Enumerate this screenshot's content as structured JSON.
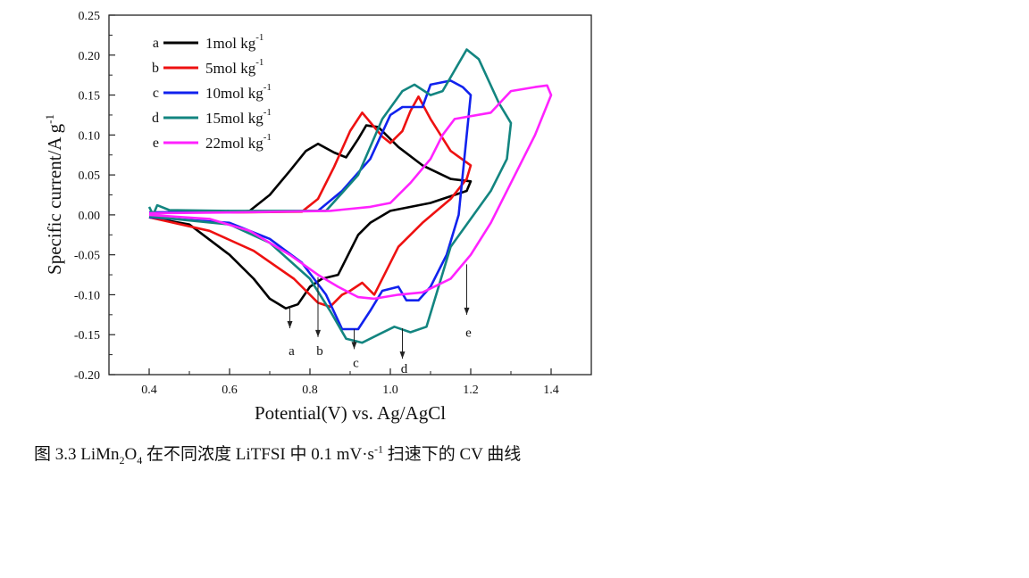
{
  "chart_data": {
    "type": "line",
    "title": "",
    "xlabel": "Potential(V) vs. Ag/AgCl",
    "ylabel": "Specific current/A g",
    "ylabel_sup": "-1",
    "xlim": [
      0.3,
      1.5
    ],
    "ylim": [
      -0.2,
      0.25
    ],
    "xticks": [
      0.4,
      0.6,
      0.8,
      1.0,
      1.2,
      1.4
    ],
    "xtick_labels": [
      "0.4",
      "0.6",
      "0.8",
      "1.0",
      "1.2",
      "1.4"
    ],
    "yticks": [
      0.25,
      0.2,
      0.15,
      0.1,
      0.05,
      0.0,
      -0.05,
      -0.1,
      -0.15,
      -0.2
    ],
    "ytick_labels": [
      "0.25",
      "0.20",
      "0.15",
      "0.10",
      "0.05",
      "0.00",
      "-0.05",
      "-0.10",
      "-0.15",
      "-0.20"
    ],
    "grid": false,
    "legend_position": "top-left",
    "series": [
      {
        "letter": "a",
        "name": "1mol kg",
        "sup": "-1",
        "color": "#000000",
        "x": [
          0.4,
          0.5,
          0.6,
          0.65,
          0.7,
          0.75,
          0.79,
          0.82,
          0.86,
          0.89,
          0.92,
          0.94,
          0.97,
          1.02,
          1.08,
          1.15,
          1.2,
          1.19,
          1.1,
          1.0,
          0.95,
          0.92,
          0.9,
          0.87,
          0.83,
          0.8,
          0.77,
          0.74,
          0.7,
          0.66,
          0.6,
          0.5,
          0.4
        ],
        "y": [
          0.002,
          0.003,
          0.003,
          0.005,
          0.025,
          0.055,
          0.08,
          0.089,
          0.078,
          0.072,
          0.095,
          0.112,
          0.11,
          0.085,
          0.062,
          0.045,
          0.042,
          0.03,
          0.015,
          0.005,
          -0.01,
          -0.025,
          -0.045,
          -0.075,
          -0.08,
          -0.09,
          -0.112,
          -0.117,
          -0.105,
          -0.08,
          -0.05,
          -0.012,
          -0.003
        ]
      },
      {
        "letter": "b",
        "name": "5mol kg",
        "sup": "-1",
        "color": "#ee1111",
        "x": [
          0.4,
          0.6,
          0.78,
          0.82,
          0.86,
          0.9,
          0.93,
          0.96,
          0.98,
          1.0,
          1.03,
          1.05,
          1.07,
          1.1,
          1.15,
          1.2,
          1.19,
          1.15,
          1.08,
          1.02,
          0.99,
          0.96,
          0.93,
          0.9,
          0.88,
          0.85,
          0.82,
          0.76,
          0.66,
          0.55,
          0.4
        ],
        "y": [
          0.003,
          0.003,
          0.004,
          0.02,
          0.06,
          0.105,
          0.128,
          0.11,
          0.098,
          0.09,
          0.105,
          0.13,
          0.148,
          0.12,
          0.08,
          0.062,
          0.045,
          0.02,
          -0.01,
          -0.04,
          -0.07,
          -0.1,
          -0.085,
          -0.095,
          -0.1,
          -0.115,
          -0.11,
          -0.08,
          -0.045,
          -0.02,
          -0.003
        ]
      },
      {
        "letter": "c",
        "name": "10mol kg",
        "sup": "-1",
        "color": "#1122ee",
        "x": [
          0.4,
          0.6,
          0.82,
          0.88,
          0.95,
          1.0,
          1.03,
          1.08,
          1.1,
          1.15,
          1.18,
          1.2,
          1.17,
          1.14,
          1.1,
          1.07,
          1.04,
          1.02,
          0.98,
          0.95,
          0.92,
          0.88,
          0.84,
          0.78,
          0.7,
          0.6,
          0.4
        ],
        "y": [
          0.003,
          0.004,
          0.005,
          0.03,
          0.07,
          0.125,
          0.135,
          0.135,
          0.163,
          0.168,
          0.16,
          0.15,
          0.0,
          -0.05,
          -0.09,
          -0.107,
          -0.107,
          -0.09,
          -0.095,
          -0.12,
          -0.143,
          -0.143,
          -0.1,
          -0.06,
          -0.03,
          -0.01,
          -0.003
        ]
      },
      {
        "letter": "d",
        "name": "15mol kg",
        "sup": "-1",
        "color": "#138580",
        "x": [
          0.4,
          0.41,
          0.42,
          0.45,
          0.6,
          0.84,
          0.92,
          0.98,
          1.03,
          1.06,
          1.1,
          1.13,
          1.19,
          1.22,
          1.27,
          1.3,
          1.29,
          1.25,
          1.2,
          1.15,
          1.12,
          1.09,
          1.05,
          1.01,
          0.97,
          0.93,
          0.89,
          0.85,
          0.8,
          0.7,
          0.6,
          0.4
        ],
        "y": [
          0.01,
          0.0,
          0.012,
          0.006,
          0.005,
          0.005,
          0.05,
          0.12,
          0.155,
          0.163,
          0.15,
          0.155,
          0.207,
          0.195,
          0.14,
          0.115,
          0.07,
          0.03,
          -0.005,
          -0.04,
          -0.09,
          -0.14,
          -0.147,
          -0.14,
          -0.15,
          -0.16,
          -0.155,
          -0.12,
          -0.08,
          -0.035,
          -0.012,
          -0.002
        ]
      },
      {
        "letter": "e",
        "name": "22mol kg",
        "sup": "-1",
        "color": "#ff22ff",
        "x": [
          0.4,
          0.6,
          0.85,
          0.95,
          1.0,
          1.05,
          1.1,
          1.13,
          1.16,
          1.25,
          1.3,
          1.36,
          1.39,
          1.4,
          1.36,
          1.3,
          1.25,
          1.2,
          1.15,
          1.08,
          1.02,
          0.96,
          0.92,
          0.87,
          0.82,
          0.75,
          0.65,
          0.55,
          0.4
        ],
        "y": [
          0.002,
          0.003,
          0.005,
          0.01,
          0.015,
          0.04,
          0.07,
          0.1,
          0.12,
          0.128,
          0.155,
          0.16,
          0.162,
          0.15,
          0.1,
          0.04,
          -0.01,
          -0.05,
          -0.08,
          -0.097,
          -0.1,
          -0.105,
          -0.103,
          -0.09,
          -0.075,
          -0.05,
          -0.02,
          -0.005,
          0.0
        ]
      }
    ],
    "annotations": [
      {
        "label": "a",
        "x": 0.75,
        "y_from": -0.115,
        "y_to": -0.142,
        "label_y": -0.17
      },
      {
        "label": "b",
        "x": 0.82,
        "y_from": -0.078,
        "y_to": -0.153,
        "label_y": -0.17
      },
      {
        "label": "c",
        "x": 0.91,
        "y_from": -0.143,
        "y_to": -0.168,
        "label_y": -0.185
      },
      {
        "label": "d",
        "x": 1.03,
        "y_from": -0.142,
        "y_to": -0.18,
        "label_y": -0.192
      },
      {
        "label": "e",
        "x": 1.19,
        "y_from": -0.062,
        "y_to": -0.125,
        "label_y": -0.147
      }
    ]
  },
  "caption": {
    "prefix": "图 3.3 LiMn",
    "sub1": "2",
    "mid1": "O",
    "sub2": "4",
    "mid2": " 在不同浓度 LiTFSI 中 0.1 mV·s",
    "sup": "-1",
    "suffix": " 扫速下的 CV 曲线"
  }
}
